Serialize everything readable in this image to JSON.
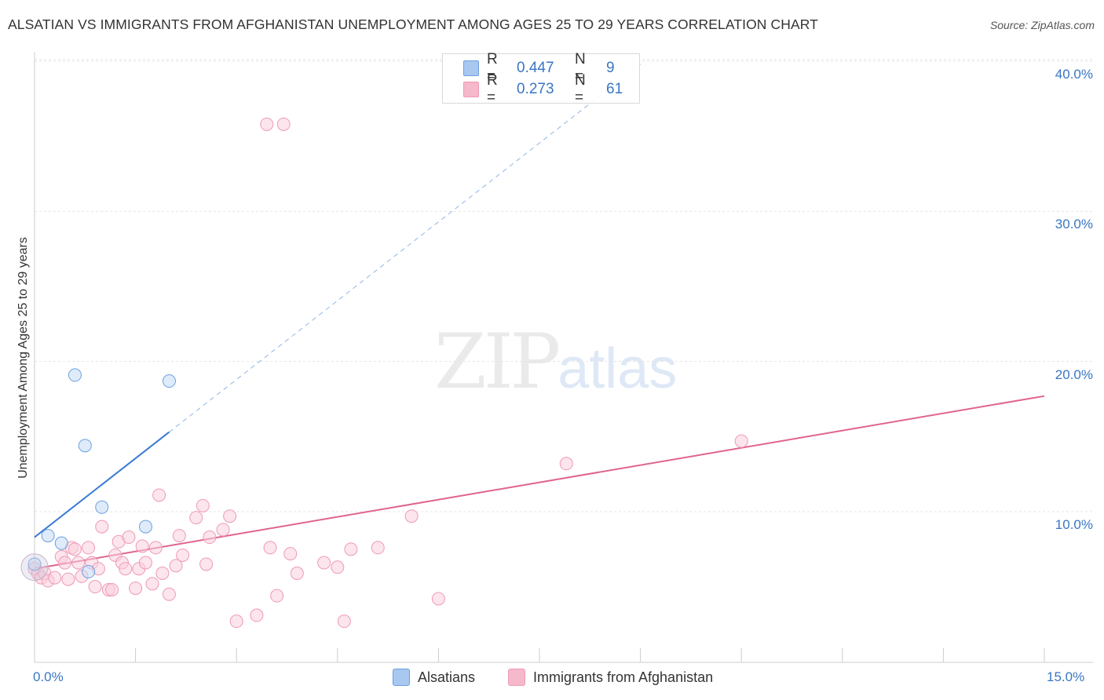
{
  "title": "ALSATIAN VS IMMIGRANTS FROM AFGHANISTAN UNEMPLOYMENT AMONG AGES 25 TO 29 YEARS CORRELATION CHART",
  "source": "Source: ZipAtlas.com",
  "watermark": {
    "zip": "ZIP",
    "atlas": "atlas"
  },
  "legend_top": {
    "rows": [
      {
        "r_label": "R =",
        "r_value": "0.447",
        "n_label": "N =",
        "n_value": "9",
        "color": "#a9c8f0"
      },
      {
        "r_label": "R =",
        "r_value": "0.273",
        "n_label": "N =",
        "n_value": "61",
        "color": "#f6b8cb"
      }
    ]
  },
  "legend_bottom": {
    "items": [
      {
        "label": "Alsatians",
        "color": "#a9c8f0"
      },
      {
        "label": "Immigrants from Afghanistan",
        "color": "#f6b8cb"
      }
    ]
  },
  "chart_data": {
    "type": "scatter",
    "title": "ALSATIAN VS IMMIGRANTS FROM AFGHANISTAN UNEMPLOYMENT AMONG AGES 25 TO 29 YEARS CORRELATION CHART",
    "xlabel": "",
    "ylabel": "Unemployment Among Ages 25 to 29 years",
    "xlim": [
      0,
      15
    ],
    "ylim": [
      0,
      42
    ],
    "x_tick_labels": [
      "0.0%",
      "15.0%"
    ],
    "y_ticks": [
      10,
      20,
      30,
      40
    ],
    "y_tick_labels": [
      "10.0%",
      "20.0%",
      "30.0%",
      "40.0%"
    ],
    "grid": true,
    "series": [
      {
        "name": "Alsatians",
        "color": "#6aa0e0",
        "fill": "#c6dbf5",
        "points": [
          [
            0.0,
            6.5
          ],
          [
            0.2,
            8.4
          ],
          [
            0.4,
            7.9
          ],
          [
            0.6,
            19.1
          ],
          [
            0.75,
            14.4
          ],
          [
            0.8,
            6.0
          ],
          [
            1.0,
            10.3
          ],
          [
            1.65,
            9.0
          ],
          [
            2.0,
            18.7
          ]
        ],
        "trend": {
          "x0": 0.0,
          "y0": 8.3,
          "x1": 2.0,
          "y1": 15.3,
          "extend_to_x": 9.0,
          "style": "solid-then-dashed",
          "color": "#3a7bd5"
        }
      },
      {
        "name": "Immigrants from Afghanistan",
        "color": "#ee9ab5",
        "fill": "#f9cfdc",
        "points": [
          [
            0.0,
            6.2
          ],
          [
            0.05,
            5.9
          ],
          [
            0.1,
            5.6
          ],
          [
            0.15,
            5.9
          ],
          [
            0.2,
            5.4
          ],
          [
            0.3,
            5.6
          ],
          [
            0.4,
            7.0
          ],
          [
            0.45,
            6.6
          ],
          [
            0.5,
            5.5
          ],
          [
            0.55,
            7.6
          ],
          [
            0.6,
            7.5
          ],
          [
            0.65,
            6.6
          ],
          [
            0.7,
            5.7
          ],
          [
            0.8,
            7.6
          ],
          [
            0.85,
            6.6
          ],
          [
            0.9,
            5.0
          ],
          [
            0.95,
            6.2
          ],
          [
            1.0,
            9.0
          ],
          [
            1.1,
            4.8
          ],
          [
            1.15,
            4.8
          ],
          [
            1.2,
            7.1
          ],
          [
            1.25,
            8.0
          ],
          [
            1.3,
            6.6
          ],
          [
            1.35,
            6.2
          ],
          [
            1.4,
            8.3
          ],
          [
            1.5,
            4.9
          ],
          [
            1.55,
            6.2
          ],
          [
            1.6,
            7.7
          ],
          [
            1.65,
            6.6
          ],
          [
            1.75,
            5.2
          ],
          [
            1.8,
            7.6
          ],
          [
            1.85,
            11.1
          ],
          [
            1.9,
            5.9
          ],
          [
            2.0,
            4.5
          ],
          [
            2.1,
            6.4
          ],
          [
            2.15,
            8.4
          ],
          [
            2.2,
            7.1
          ],
          [
            2.4,
            9.6
          ],
          [
            2.5,
            10.4
          ],
          [
            2.55,
            6.5
          ],
          [
            2.6,
            8.3
          ],
          [
            2.8,
            8.8
          ],
          [
            2.9,
            9.7
          ],
          [
            3.0,
            2.7
          ],
          [
            3.3,
            3.1
          ],
          [
            3.5,
            7.6
          ],
          [
            3.6,
            4.4
          ],
          [
            3.8,
            7.2
          ],
          [
            3.9,
            5.9
          ],
          [
            4.3,
            6.6
          ],
          [
            4.5,
            6.3
          ],
          [
            4.6,
            2.7
          ],
          [
            4.7,
            7.5
          ],
          [
            5.1,
            7.6
          ],
          [
            5.6,
            9.7
          ],
          [
            6.0,
            4.2
          ],
          [
            3.45,
            35.8
          ],
          [
            3.7,
            35.8
          ],
          [
            7.9,
            13.2
          ],
          [
            10.5,
            14.7
          ]
        ],
        "trend": {
          "x0": 0.0,
          "y0": 6.2,
          "x1": 15.0,
          "y1": 17.7,
          "style": "solid",
          "color": "#e0648d"
        }
      }
    ]
  }
}
